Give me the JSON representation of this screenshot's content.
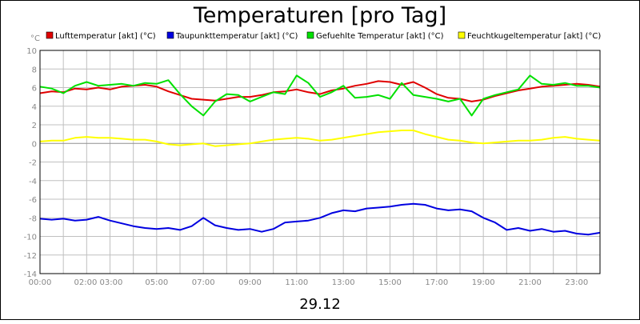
{
  "chart_data": {
    "type": "line",
    "title": "Temperaturen [pro Tag]",
    "y_unit": "°C",
    "date_label": "29.12",
    "ylim": [
      -14,
      10
    ],
    "yticks": [
      10,
      8,
      6,
      4,
      2,
      0,
      -2,
      -4,
      -6,
      -8,
      -10,
      -12,
      -14
    ],
    "xlim": [
      0,
      24
    ],
    "x_tick_labels": [
      {
        "hour": 0,
        "label": "00:00"
      },
      {
        "hour": 2.5,
        "label": "02:00 03:00"
      },
      {
        "hour": 5,
        "label": "05:00"
      },
      {
        "hour": 7,
        "label": "07:00"
      },
      {
        "hour": 9,
        "label": "09:00"
      },
      {
        "hour": 11,
        "label": "11:00"
      },
      {
        "hour": 13,
        "label": "13:00"
      },
      {
        "hour": 15,
        "label": "15:00"
      },
      {
        "hour": 17,
        "label": "17:00"
      },
      {
        "hour": 19,
        "label": "19:00"
      },
      {
        "hour": 21,
        "label": "21:00"
      },
      {
        "hour": 23,
        "label": "23:00"
      }
    ],
    "grid": true,
    "legend_position": "top",
    "x_hours": [
      0,
      0.5,
      1,
      1.5,
      2,
      2.5,
      3,
      3.5,
      4,
      4.5,
      5,
      5.5,
      6,
      6.5,
      7,
      7.5,
      8,
      8.5,
      9,
      9.5,
      10,
      10.5,
      11,
      11.5,
      12,
      12.5,
      13,
      13.5,
      14,
      14.5,
      15,
      15.5,
      16,
      16.5,
      17,
      17.5,
      18,
      18.5,
      19,
      19.5,
      20,
      20.5,
      21,
      21.5,
      22,
      22.5,
      23,
      23.5,
      24
    ],
    "series": [
      {
        "name": "Lufttemperatur [akt] (°C)",
        "color": "#e00000",
        "values": [
          5.4,
          5.6,
          5.5,
          5.9,
          5.8,
          6.0,
          5.8,
          6.1,
          6.2,
          6.3,
          6.1,
          5.6,
          5.2,
          4.8,
          4.7,
          4.6,
          4.8,
          5.0,
          5.0,
          5.2,
          5.5,
          5.6,
          5.8,
          5.5,
          5.3,
          5.7,
          5.9,
          6.2,
          6.4,
          6.7,
          6.6,
          6.3,
          6.6,
          6.0,
          5.3,
          4.9,
          4.8,
          4.5,
          4.7,
          5.1,
          5.4,
          5.7,
          5.9,
          6.1,
          6.2,
          6.3,
          6.4,
          6.3,
          6.1
        ]
      },
      {
        "name": "Taupunkttemperatur [akt] (°C)",
        "color": "#0000e0",
        "values": [
          -8.1,
          -8.2,
          -8.1,
          -8.3,
          -8.2,
          -7.9,
          -8.3,
          -8.6,
          -8.9,
          -9.1,
          -9.2,
          -9.1,
          -9.3,
          -8.9,
          -8.0,
          -8.8,
          -9.1,
          -9.3,
          -9.2,
          -9.5,
          -9.2,
          -8.5,
          -8.4,
          -8.3,
          -8.0,
          -7.5,
          -7.2,
          -7.3,
          -7.0,
          -6.9,
          -6.8,
          -6.6,
          -6.5,
          -6.6,
          -7.0,
          -7.2,
          -7.1,
          -7.3,
          -8.0,
          -8.5,
          -9.3,
          -9.1,
          -9.4,
          -9.2,
          -9.5,
          -9.4,
          -9.7,
          -9.8,
          -9.6
        ]
      },
      {
        "name": "Gefuehlte Temperatur [akt] (°C)",
        "color": "#00e000",
        "values": [
          6.1,
          5.9,
          5.4,
          6.2,
          6.6,
          6.2,
          6.3,
          6.4,
          6.2,
          6.5,
          6.4,
          6.8,
          5.3,
          4.0,
          3.0,
          4.5,
          5.3,
          5.2,
          4.5,
          5.0,
          5.5,
          5.3,
          7.3,
          6.5,
          5.0,
          5.5,
          6.2,
          4.9,
          5.0,
          5.2,
          4.8,
          6.5,
          5.2,
          5.0,
          4.8,
          4.5,
          4.8,
          3.0,
          4.8,
          5.2,
          5.5,
          5.8,
          7.3,
          6.4,
          6.3,
          6.5,
          6.2,
          6.2,
          6.0
        ]
      },
      {
        "name": "Feuchtkugeltemperatur [akt] (°C)",
        "color": "#ffff00",
        "values": [
          0.2,
          0.3,
          0.3,
          0.6,
          0.7,
          0.6,
          0.6,
          0.5,
          0.4,
          0.4,
          0.2,
          -0.1,
          -0.2,
          -0.1,
          0.0,
          -0.3,
          -0.2,
          -0.1,
          0.0,
          0.2,
          0.4,
          0.5,
          0.6,
          0.5,
          0.3,
          0.4,
          0.6,
          0.8,
          1.0,
          1.2,
          1.3,
          1.4,
          1.4,
          1.0,
          0.7,
          0.4,
          0.3,
          0.1,
          0.0,
          0.1,
          0.2,
          0.3,
          0.3,
          0.4,
          0.6,
          0.7,
          0.5,
          0.4,
          0.3
        ]
      }
    ]
  }
}
